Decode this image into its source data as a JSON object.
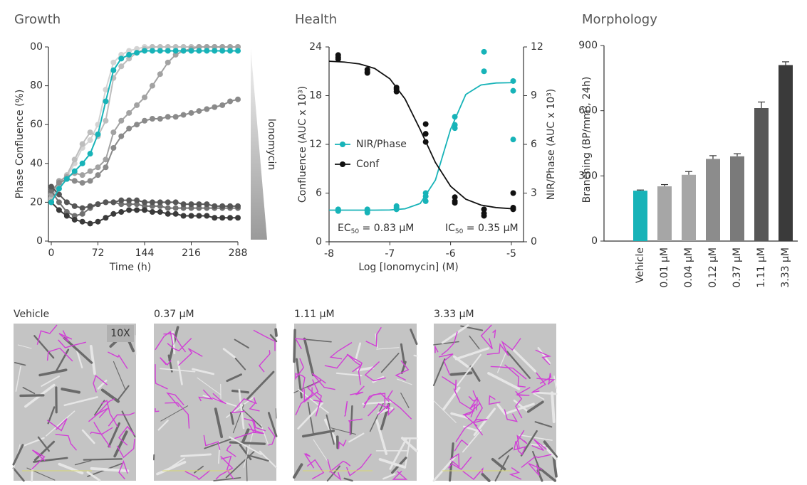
{
  "chart_data": [
    {
      "type": "line",
      "title": "Growth",
      "x_label": "Time (h)",
      "y_label": "Phase Confluence (%)",
      "annotation": "Ionomycin",
      "xlim": [
        0,
        288
      ],
      "xticks": [
        0,
        72,
        144,
        216,
        288
      ],
      "ylim": [
        0,
        100
      ],
      "yticks": [
        0,
        20,
        40,
        60,
        80,
        {
          "value": 100,
          "label": "00"
        }
      ],
      "x": [
        0,
        12,
        24,
        36,
        48,
        60,
        72,
        84,
        96,
        108,
        120,
        132,
        144,
        156,
        168,
        180,
        192,
        204,
        216,
        228,
        240,
        252,
        264,
        276,
        288
      ],
      "series": [
        {
          "color": "#d3d3d3",
          "values": [
            21,
            28,
            33,
            40,
            48,
            52,
            60,
            78,
            92,
            96,
            98,
            99,
            100,
            100,
            100,
            100,
            100,
            100,
            100,
            100,
            100,
            100,
            100,
            100,
            100
          ]
        },
        {
          "color": "#bdbdbd",
          "values": [
            22,
            30,
            34,
            42,
            50,
            56,
            54,
            62,
            84,
            90,
            94,
            97,
            99,
            100,
            100,
            100,
            100,
            100,
            100,
            100,
            100,
            100,
            100,
            100,
            100
          ]
        },
        {
          "color": "#a2a2a2",
          "values": [
            24,
            31,
            33,
            35,
            34,
            36,
            38,
            42,
            56,
            62,
            66,
            70,
            74,
            80,
            86,
            92,
            96,
            98,
            99,
            100,
            100,
            100,
            100,
            100,
            100
          ]
        },
        {
          "color": "#8a8a8a",
          "values": [
            26,
            30,
            32,
            31,
            30,
            31,
            34,
            38,
            48,
            54,
            58,
            60,
            62,
            63,
            63,
            64,
            64,
            65,
            66,
            67,
            68,
            69,
            70,
            72,
            73
          ]
        },
        {
          "color": "#707070",
          "values": [
            26,
            20,
            15,
            13,
            14,
            17,
            19,
            20,
            20,
            19,
            19,
            19,
            18,
            18,
            18,
            17,
            17,
            17,
            17,
            17,
            17,
            17,
            17,
            17,
            17
          ]
        },
        {
          "color": "#565656",
          "values": [
            28,
            24,
            20,
            18,
            17,
            18,
            19,
            20,
            20,
            21,
            21,
            21,
            20,
            20,
            20,
            20,
            20,
            19,
            19,
            19,
            19,
            18,
            18,
            18,
            18
          ]
        },
        {
          "color": "#3a3a3a",
          "values": [
            20,
            16,
            13,
            11,
            10,
            9,
            10,
            12,
            14,
            15,
            16,
            16,
            16,
            15,
            15,
            14,
            14,
            13,
            13,
            13,
            13,
            12,
            12,
            12,
            12
          ]
        },
        {
          "color": "#17b3b8",
          "values": [
            20,
            27,
            32,
            36,
            40,
            45,
            55,
            72,
            88,
            94,
            96,
            97,
            98,
            98,
            98,
            98,
            98,
            98,
            98,
            98,
            98,
            98,
            98,
            98,
            98
          ]
        }
      ]
    },
    {
      "type": "dose_response",
      "title": "Health",
      "x_label": "Log [Ionomycin] (M)",
      "y_label": "Confluence (AUC x 10³)",
      "y2_label": "NIR/Phase (AUC x 10³)",
      "xlim": [
        -8,
        -4.8
      ],
      "xticks": [
        -8,
        -7,
        -6,
        -5
      ],
      "ylim": [
        0,
        24
      ],
      "yticks": [
        0,
        6,
        12,
        18,
        24
      ],
      "y2lim": [
        0,
        12
      ],
      "y2ticks": [
        0,
        3,
        6,
        9,
        12
      ],
      "legend": "middle-left",
      "fit_x": [
        -8,
        -7.75,
        -7.5,
        -7.25,
        -7,
        -6.75,
        -6.5,
        -6.25,
        -6,
        -5.75,
        -5.5,
        -5.25,
        -5
      ],
      "series": [
        {
          "name": "NIR/Phase",
          "color": "#17b3b8",
          "axis": "y2",
          "x": [
            -7.85,
            -7.85,
            -7.85,
            -7.37,
            -7.37,
            -7.37,
            -6.89,
            -6.89,
            -6.89,
            -6.41,
            -6.41,
            -6.41,
            -5.93,
            -5.93,
            -5.93,
            -5.45,
            -5.45,
            -4.97,
            -4.97,
            -4.97
          ],
          "values": [
            1.9,
            2.0,
            1.9,
            1.8,
            2.0,
            1.9,
            2.1,
            2.2,
            2.0,
            2.8,
            3.0,
            2.5,
            7.2,
            7.0,
            7.7,
            11.7,
            10.5,
            9.9,
            9.3,
            6.3
          ],
          "fit_values": [
            1.95,
            1.95,
            1.95,
            1.95,
            1.96,
            2.03,
            2.36,
            3.8,
            6.93,
            9.07,
            9.66,
            9.78,
            9.8
          ]
        },
        {
          "name": "Conf",
          "color": "#111111",
          "axis": "y",
          "x": [
            -7.85,
            -7.85,
            -7.85,
            -7.37,
            -7.37,
            -7.37,
            -6.89,
            -6.89,
            -6.89,
            -6.41,
            -6.41,
            -6.41,
            -5.93,
            -5.93,
            -5.93,
            -5.45,
            -5.45,
            -5.45,
            -4.97,
            -4.97,
            -4.97
          ],
          "values": [
            23,
            22.7,
            22.5,
            21.2,
            20.8,
            20.9,
            19,
            18.5,
            18.8,
            14.5,
            13.3,
            12.3,
            5.5,
            4.8,
            5,
            4,
            3.5,
            3.2,
            6,
            4.2,
            4
          ],
          "fit_values": [
            22.24,
            22.14,
            21.91,
            21.35,
            20.08,
            17.6,
            13.82,
            9.77,
            6.84,
            5.25,
            4.52,
            4.21,
            4.08
          ]
        }
      ],
      "annotations": [
        {
          "prefix": "EC",
          "sub": "50",
          "text": " = 0.83 µM"
        },
        {
          "prefix": "IC",
          "sub": "50",
          "text": " = 0.35 µM"
        }
      ]
    },
    {
      "type": "bar",
      "title": "Morphology",
      "y_label": "Branching (BP/mm², 24h)",
      "ylim": [
        0,
        900
      ],
      "yticks": [
        0,
        300,
        600,
        900
      ],
      "categories": [
        "Vehicle",
        "0.01 µM",
        "0.04 µM",
        "0.12 µM",
        "0.37 µM",
        "1.11 µM",
        "3.33 µM"
      ],
      "values": [
        232,
        252,
        305,
        378,
        390,
        612,
        810
      ],
      "errors": [
        3,
        8,
        15,
        15,
        12,
        28,
        15
      ],
      "colors": [
        "#17b3b8",
        "#a6a6a6",
        "#a6a6a6",
        "#8c8c8c",
        "#7a7a7a",
        "#575757",
        "#3a3a3a"
      ]
    }
  ],
  "micrographs": {
    "magnification": "10X",
    "panels": [
      {
        "label": "Vehicle"
      },
      {
        "label": "0.37 µM"
      },
      {
        "label": "1.11 µM"
      },
      {
        "label": "3.33 µM"
      }
    ]
  }
}
